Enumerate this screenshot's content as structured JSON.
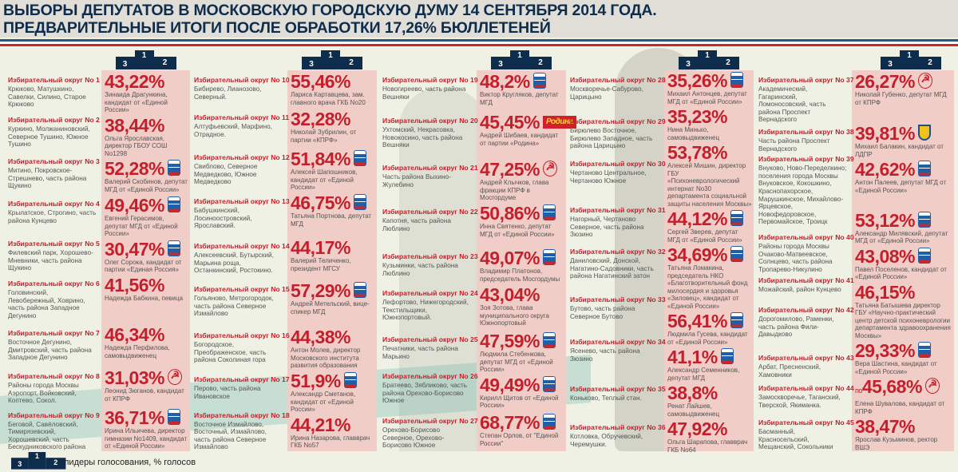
{
  "header": {
    "title_line1": "ВЫБОРЫ ДЕПУТАТОВ В МОСКОВСКУЮ ГОРОДСКУЮ ДУМУ 14 СЕНТЯБРЯ 2014 ГОДА.",
    "title_line2": "ПРЕДВАРИТЕЛЬНЫЕ ИТОГИ ПОСЛЕ ОБРАБОТКИ 17,26% БЮЛЛЕТЕНЕЙ"
  },
  "podium": {
    "first": "1",
    "second": "2",
    "third": "3"
  },
  "legend": {
    "text": "лидеры голосования, % голосов"
  },
  "colors": {
    "accent_red": "#c41f2c",
    "navy": "#0e2c4c",
    "panel_pink": "#f0cdc6",
    "background": "#eef1e3"
  },
  "party_logos": {
    "er": "united-russia-bear-icon",
    "kprf": "КПРФ",
    "rodina": "Родина",
    "ldpr": "ldpr-emblem-icon"
  },
  "columns": [
    {
      "districts": [
        {
          "title": "Избирательный округ No 1",
          "areas": "Крюково, Матушкино, Савелки, Силино, Старое Крюково",
          "percent": "43,22%",
          "winner": "Зинаида Драгункина, кандидат от «Единой России»",
          "party": ""
        },
        {
          "title": "Избирательный округ No 2",
          "areas": "Куркино, Молжаниновский, Северное Тушино, Южное Тушино",
          "percent": "38,44%",
          "winner": "Ольга Ярославская, директор ГБОУ СОШ No1298",
          "party": ""
        },
        {
          "title": "Избирательный округ No 3",
          "areas": "Митино, Покровское-Стрешнево, часть района Щукино",
          "percent": "52,28%",
          "winner": "Валерий Скобинов, депутат МГД от «Единой России»",
          "party": "er"
        },
        {
          "title": "Избирательный округ No 4",
          "areas": "Крылатское, Строгино, часть района Кунцево",
          "percent": "49,46%",
          "winner": "Евгений Герасимов, депутат МГД от «Единой России»",
          "party": "er"
        },
        {
          "title": "Избирательный округ No 5",
          "areas": "Филевский парк, Хорошево-Мневники, часть района Щукино",
          "percent": "30,47%",
          "winner": "Олег Сорока, кандидат от партии «Единая Россия»",
          "party": "er"
        },
        {
          "title": "Избирательный округ No 6",
          "areas": "Головинский, Левобережный, Ховрино, часть района Западное Дегунино",
          "percent": "41,56%",
          "winner": "Надежда Бабкина, певица",
          "party": ""
        },
        {
          "title": "Избирательный округ No 7",
          "areas": "Восточное Дегунино, Дмитровский, часть района Западное Дегунино",
          "percent": "46,34%",
          "winner": "Надежда Перфилова, самовыдвиженец",
          "party": ""
        },
        {
          "title": "Избирательный округ No 8",
          "areas": "Районы города Москвы Аэропорт, Войковский, Коптево, Сокол.",
          "percent": "31,03%",
          "winner": "Леонид Зюганов, кандидат от КПРФ",
          "party": "kprf"
        },
        {
          "title": "Избирательный округ No 9",
          "areas": "Беговой, Савёловский, Тимирязевский, Хорошевский, часть Бескудниковского района",
          "percent": "36,71%",
          "winner": "Ирина Ильичева, директор гимназии No1409, кандидат от «Единой России»",
          "party": "er"
        }
      ]
    },
    {
      "districts": [
        {
          "title": "Избирательный округ No 10",
          "areas": "Бибирево, Лианозово, Северный.",
          "percent": "55,46%",
          "winner": "Лариса Картавцева, зам. главного врача ГКБ No20",
          "party": ""
        },
        {
          "title": "Избирательный округ No 11",
          "areas": "Алтуфьевский, Марфино, Отрадное.",
          "percent": "32,28%",
          "winner": "Николай Зубрилин, от партии «КПРФ»",
          "party": ""
        },
        {
          "title": "Избирательный округ No 12",
          "areas": "Свиблово, Северное Медведково, Южное Медведково",
          "percent": "51,84%",
          "winner": "Алексей Шапошников, кандидат от «Единой России»",
          "party": "er"
        },
        {
          "title": "Избирательный округ No 13",
          "areas": "Бабушкинский, Лосиноостровский, Ярославский.",
          "percent": "46,75%",
          "winner": "Татьяна Портнова, депутат МГД",
          "party": "er"
        },
        {
          "title": "Избирательный округ No 14",
          "areas": "Алексеевский, Бутырский, Марьина роща, Останкинский, Ростокино.",
          "percent": "44,17%",
          "winner": "Валерий Теличенко, президент МГСУ",
          "party": ""
        },
        {
          "title": "Избирательный округ No 15",
          "areas": "Гольяново, Метрогородок, часть района Северное Измайлово",
          "percent": "57,29%",
          "winner": "Андрей Метельский, вице-спикер МГД",
          "party": "er"
        },
        {
          "title": "Избирательный округ No 16",
          "areas": "Богородское, Преображенское, часть района Соколиная гора",
          "percent": "44,38%",
          "winner": "Антон Молев, директор Московского института развития образования",
          "party": ""
        },
        {
          "title": "Избирательный округ No 17",
          "areas": "Перово, часть района Ивановское",
          "percent": "51,9%",
          "winner": "Александр Сметанов, кандидат от «Единой России»",
          "party": "er"
        },
        {
          "title": "Избирательный округ No 18",
          "areas": "Восточное Измайлово, Восточный, Измайлово, часть района Северное Измайлово",
          "percent": "44,21%",
          "winner": "Ирина Назарова, главврач ГКБ No57",
          "party": ""
        }
      ]
    },
    {
      "districts": [
        {
          "title": "Избирательный округ No 19",
          "areas": "Новогиреево, часть района Вешняки",
          "percent": "48,2%",
          "winner": "Виктор Кругляков, депутат МГД",
          "party": "er"
        },
        {
          "title": "Избирательный округ No 20",
          "areas": "Ухтомский, Некрасовка, Новокосино, часть района Вешняки",
          "percent": "45,45%",
          "winner": "Андрей Шибаев, кандидат от партии «Родина»",
          "party": "rodina"
        },
        {
          "title": "Избирательный округ No 21",
          "areas": "Часть района Выхино-Жулебино",
          "percent": "47,25%",
          "winner": "Андрей Клычков, глава фракции КПРФ в Мосгордуме",
          "party": "kprf"
        },
        {
          "title": "Избирательный округ No 22",
          "areas": "Капотня, часть района Люблино",
          "percent": "50,86%",
          "winner": "Инна Святенко, депутат МГД от «Единой России»",
          "party": "er"
        },
        {
          "title": "Избирательный округ No 23",
          "areas": "Кузьминки, часть района Люблино",
          "percent": "49,07%",
          "winner": "Владимир Платонов, председатель Мосгордумы",
          "party": "er"
        },
        {
          "title": "Избирательный округ No 24",
          "areas": "Лефортово, Нижегородский, Текстильщики, Южнопортовый.",
          "percent": "43,04%",
          "winner": "Зоя Зотова, глава муниципального округа Южнопортовый",
          "party": ""
        },
        {
          "title": "Избирательный округ No 25",
          "areas": "Печатники, часть района Марьино",
          "percent": "47,59%",
          "winner": "Людмила Стебенкова, депутат МГД от «Единой России»",
          "party": "er"
        },
        {
          "title": "Избирательный округ No 26",
          "areas": "Братеево, Зябликово, часть района Орехово-Борисово Южное",
          "percent": "49,49%",
          "winner": "Кирилл Щитов от «Единой России»",
          "party": "er"
        },
        {
          "title": "Избирательный округ No 27",
          "areas": "Орехово-Борисово Северное, Орехово-Борисово Южное",
          "percent": "68,77%",
          "winner": "Степан Орлов, от \"Единой России\"",
          "party": "er"
        }
      ]
    },
    {
      "districts": [
        {
          "title": "Избирательный округ No 28",
          "areas": "Москворечье-Сабурово, Царицыно",
          "percent": "35,26%",
          "winner": "Михаил Антонцев, депутат МГД от «Единой России»",
          "party": "er"
        },
        {
          "title": "Избирательный округ No 29",
          "areas": "Бирюлево Восточное, Бирюлево Западное, часть района Царицыно",
          "percent": "35,23%",
          "winner": "Нина Минько, самовыдвиженец",
          "party": ""
        },
        {
          "title": "Избирательный округ No 30",
          "areas": "Чертаново Центральное, Чертаново Южное",
          "percent": "53,78%",
          "winner": "Алексей Мишин, директор ГБУ «Психоневрологический интернат No30 департамента социальной защиты населения Москвы»",
          "party": ""
        },
        {
          "title": "Избирательный округ No 31",
          "areas": "Нагорный, Чертаново Северное, часть района Зюзино",
          "percent": "44,12%",
          "winner": "Сергей Зверев, депутат МГД от «Единой России»",
          "party": "er"
        },
        {
          "title": "Избирательный округ No 32",
          "areas": "Даниловский, Донской, Нагатино-Садовники, часть района Нагатинский затон",
          "percent": "34,69%",
          "winner": "Татьяна Ломакина, председатель НКО «Благотворительный фонд милосердия и здоровья «Зиловец», кандидат от «Единой России»",
          "party": "er"
        },
        {
          "title": "Избирательный округ No 33",
          "areas": "Бутово, часть района Северное Бутово",
          "percent": "56,41%",
          "winner": "Людмила Гусева, кандидат от «Единой России»",
          "party": "er"
        },
        {
          "title": "Избирательный округ No 34",
          "areas": "Ясенево, часть района Зюзино",
          "percent": "41,1%",
          "winner": "Александр Семенников, депутат МГД",
          "party": "er"
        },
        {
          "title": "Избирательный округ No 35",
          "areas": "Коньково, Теплый стан.",
          "percent": "38,8%",
          "winner": "Ренат Лайшев, самовыдвиженец",
          "party": ""
        },
        {
          "title": "Избирательный округ No 36",
          "areas": "Котловка, Обручевский, Черемушки.",
          "percent": "47,92%",
          "winner": "Ольга Шарапова, главврач ГКБ No64",
          "party": ""
        }
      ]
    },
    {
      "districts": [
        {
          "title": "Избирательный округ No 37",
          "areas": "Академический, Гагаринский, Ломоносовский, часть района Проспект Вернадского",
          "percent": "26,27%",
          "winner": "Николай Губенко, депутат МГД от КПРФ",
          "party": "kprf"
        },
        {
          "title": "Избирательный округ No 38",
          "areas": "Часть района Проспект Вернадского",
          "percent": "39,81%",
          "winner": "Михаил Балакин, кандидат от ЛДПР",
          "party": "ldpr"
        },
        {
          "title": "Избирательный округ No 39",
          "areas": "Внуково, Ново-Переделкино; поселения города Москвы Внуковское, Кокошкино, Краснопахорское, Марушкинское, Михайлово-Ярцевское, Новофедоровское, Первомайское, Троицк",
          "percent": "42,62%",
          "winner": "Антон Палеев, депутат МГД от «Единой России»",
          "party": "er"
        },
        {
          "title": "Избирательный округ No 40",
          "areas": "Районы города Москвы Очаково-Матвеевское, Солнцево, часть района Тропарево-Никулино",
          "percent": "53,12%",
          "winner": "Александр Милявский, депутат МГД от «Единой России»",
          "party": "er"
        },
        {
          "title": "Избирательный округ No 41",
          "areas": "Можайский, район Кунцево",
          "percent": "43,08%",
          "winner": "Павел Поселенов, кандидат от «Единой России»",
          "party": "er"
        },
        {
          "title": "Избирательный округ No 42",
          "areas": "Дорогомилово, Раменки, часть района Фили-Давыдково",
          "percent": "46,15%",
          "winner": "Татьяна Батышева директор ГБУ «Научно-практический центр детской психоневрологии департамента здравоохранения Москвы»",
          "party": ""
        },
        {
          "title": "Избирательный округ No 43",
          "areas": "Арбат, Пресненский, Хамовники",
          "percent": "29,33%",
          "winner": "Вера Шастина, кандидат от «Единой России»",
          "party": "er"
        },
        {
          "title": "Избирательный округ No 44",
          "areas": "Замоскворечье, Таганский, Тверской, Якиманка.",
          "percent_prefix": "по",
          "percent": "45,68%",
          "winner": "Елена Шувалова, кандидат от КПРФ",
          "party": "kprf"
        },
        {
          "title": "Избирательный округ No 45",
          "areas": "Басманный, Красносельский, Мещанский, Сокольники",
          "percent": "38,47%",
          "winner": "Ярослав Кузьминов, ректор ВШЭ",
          "party": ""
        }
      ]
    }
  ]
}
